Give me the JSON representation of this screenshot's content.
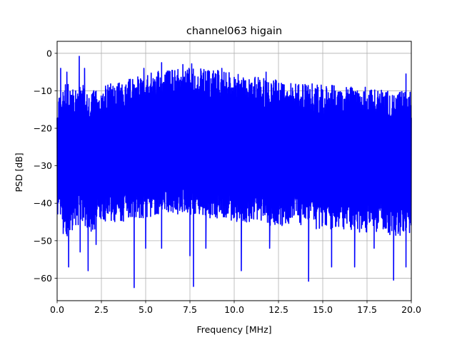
{
  "chart_data": {
    "type": "line",
    "title": "channel063 higain",
    "xlabel": "Frequency [MHz]",
    "ylabel": "PSD [dB]",
    "xlim": [
      0,
      20
    ],
    "ylim": [
      -66,
      3.2
    ],
    "xticks": [
      0.0,
      2.5,
      5.0,
      7.5,
      10.0,
      12.5,
      15.0,
      17.5,
      20.0
    ],
    "xtick_labels": [
      "0.0",
      "2.5",
      "5.0",
      "7.5",
      "10.0",
      "12.5",
      "15.0",
      "17.5",
      "20.0"
    ],
    "yticks": [
      0,
      -10,
      -20,
      -30,
      -40,
      -50,
      -60
    ],
    "ytick_labels": [
      "0",
      "−10",
      "−20",
      "−30",
      "−40",
      "−50",
      "−60"
    ],
    "grid": true,
    "series": [
      {
        "color": "#0000ff",
        "x": [
          0.0,
          0.5,
          1.0,
          1.5,
          2.0,
          2.5,
          3.0,
          3.5,
          4.0,
          4.5,
          5.0,
          5.5,
          6.0,
          6.5,
          7.0,
          7.5,
          8.0,
          8.5,
          9.0,
          9.5,
          10.0,
          10.5,
          11.0,
          11.5,
          12.0,
          12.5,
          13.0,
          13.5,
          14.0,
          14.5,
          15.0,
          15.5,
          16.0,
          16.5,
          17.0,
          17.5,
          18.0,
          18.5,
          19.0,
          19.5,
          20.0
        ],
        "upper": [
          -12,
          -8,
          -9,
          -8,
          -10,
          -9,
          -8,
          -7.5,
          -7,
          -6,
          -5.5,
          -5,
          -4.5,
          -4.5,
          -4,
          -4,
          -4,
          -4.5,
          -4.5,
          -5,
          -5,
          -6,
          -6,
          -6.5,
          -7,
          -7,
          -7.5,
          -7.5,
          -8,
          -8,
          -8.5,
          -8.5,
          -9,
          -9,
          -9,
          -9,
          -9.5,
          -9.5,
          -10,
          -10,
          -10
        ],
        "lower": [
          -44,
          -50,
          -46,
          -46,
          -48,
          -44,
          -46,
          -46,
          -44,
          -44,
          -44,
          -44,
          -43,
          -43,
          -43,
          -43,
          -44,
          -44,
          -44,
          -44,
          -45,
          -45,
          -45,
          -45,
          -46,
          -46,
          -46,
          -46,
          -46,
          -47,
          -47,
          -47,
          -47,
          -47,
          -48,
          -48,
          -48,
          -48,
          -49,
          -49,
          -49
        ],
        "peaks": [
          [
            0.2,
            -4
          ],
          [
            0.55,
            -5
          ],
          [
            1.25,
            -0.8
          ],
          [
            1.55,
            -4
          ],
          [
            4.9,
            -4
          ],
          [
            5.9,
            -2.5
          ],
          [
            7.1,
            -3
          ],
          [
            7.6,
            -2.8
          ],
          [
            9.3,
            -4
          ],
          [
            11.8,
            -5
          ],
          [
            19.7,
            -5.5
          ]
        ],
        "dips": [
          [
            0.65,
            -57
          ],
          [
            1.3,
            -53
          ],
          [
            1.75,
            -58
          ],
          [
            2.2,
            -51
          ],
          [
            4.35,
            -62.5
          ],
          [
            5.0,
            -52
          ],
          [
            5.9,
            -52
          ],
          [
            7.5,
            -54
          ],
          [
            7.7,
            -62.2
          ],
          [
            8.4,
            -52
          ],
          [
            10.4,
            -58
          ],
          [
            12.0,
            -52
          ],
          [
            14.2,
            -60.8
          ],
          [
            15.5,
            -57
          ],
          [
            16.8,
            -57
          ],
          [
            17.9,
            -52
          ],
          [
            19.0,
            -60.5
          ],
          [
            19.7,
            -57
          ]
        ]
      }
    ]
  }
}
